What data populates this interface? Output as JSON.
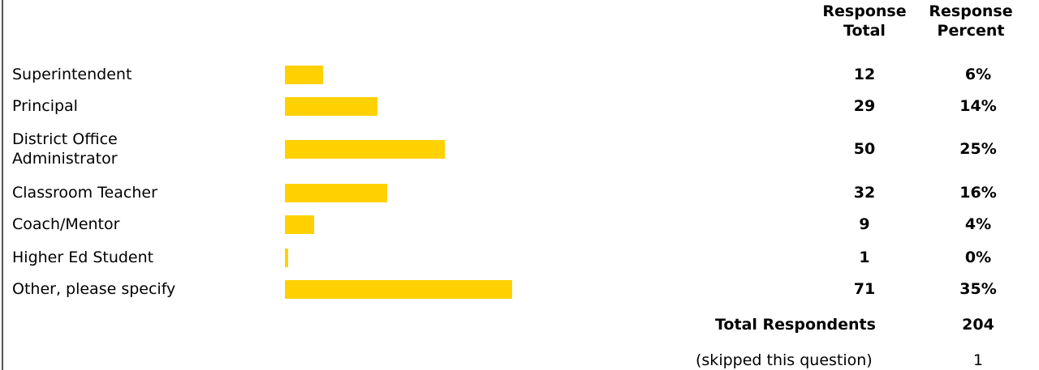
{
  "headers": {
    "total_line1": "Response",
    "total_line2": "Total",
    "percent_line1": "Response",
    "percent_line2": "Percent"
  },
  "chart_data": {
    "type": "bar",
    "orientation": "horizontal",
    "categories": [
      "Superintendent",
      "Principal",
      "District Office Administrator",
      "Classroom Teacher",
      "Coach/Mentor",
      "Higher Ed Student",
      "Other, please specify"
    ],
    "values": [
      12,
      29,
      50,
      32,
      9,
      1,
      71
    ],
    "percent_labels": [
      "6%",
      "14%",
      "25%",
      "16%",
      "4%",
      "0%",
      "35%"
    ],
    "bar_color": "#FFD100",
    "xlim": [
      0,
      100
    ]
  },
  "rows": [
    {
      "label": "Superintendent",
      "total": "12",
      "percent": "6%"
    },
    {
      "label": "Principal",
      "total": "29",
      "percent": "14%"
    },
    {
      "label_line1": "District Office",
      "label_line2": "Administrator",
      "total": "50",
      "percent": "25%"
    },
    {
      "label": "Classroom Teacher",
      "total": "32",
      "percent": "16%"
    },
    {
      "label": "Coach/Mentor",
      "total": "9",
      "percent": "4%"
    },
    {
      "label": "Higher Ed Student",
      "total": "1",
      "percent": "0%"
    },
    {
      "label": "Other, please specify",
      "total": "71",
      "percent": "35%"
    }
  ],
  "footer": {
    "total_respondents_label": "Total Respondents",
    "total_respondents_value": "204",
    "skipped_label": "(skipped this question)",
    "skipped_value": "1"
  }
}
